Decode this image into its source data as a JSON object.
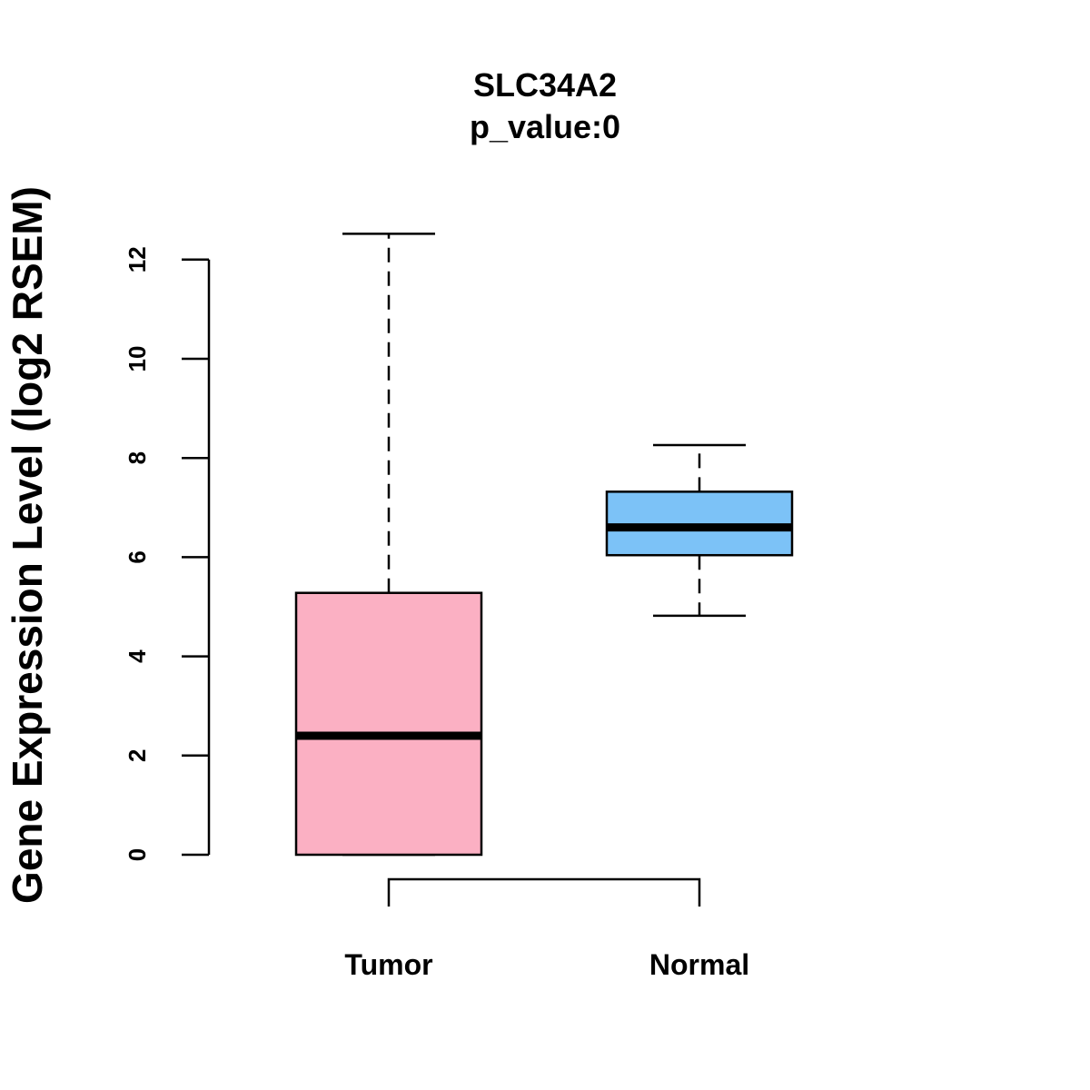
{
  "chart_data": {
    "type": "boxplot",
    "title": "SLC34A2",
    "subtitle": "p_value:0",
    "xlabel": "",
    "ylabel": "Gene Expression Level (log2 RSEM)",
    "ylim": [
      0,
      12.6
    ],
    "yticks": [
      0,
      2,
      4,
      6,
      8,
      10,
      12
    ],
    "ytick_labels": [
      "0",
      "2",
      "4",
      "6",
      "8",
      "10",
      "12"
    ],
    "grid": false,
    "categories": [
      "Tumor",
      "Normal"
    ],
    "boxes": [
      {
        "name": "Tumor",
        "whisker_low": 0.0,
        "q1": 0.0,
        "median": 2.4,
        "q3": 5.28,
        "whisker_high": 12.52,
        "color": "#FBB0C3"
      },
      {
        "name": "Normal",
        "whisker_low": 4.82,
        "q1": 6.04,
        "median": 6.6,
        "q3": 7.32,
        "whisker_high": 8.26,
        "color": "#7CC2F7"
      }
    ],
    "comparison_bracket": {
      "from": "Tumor",
      "to": "Normal"
    }
  }
}
